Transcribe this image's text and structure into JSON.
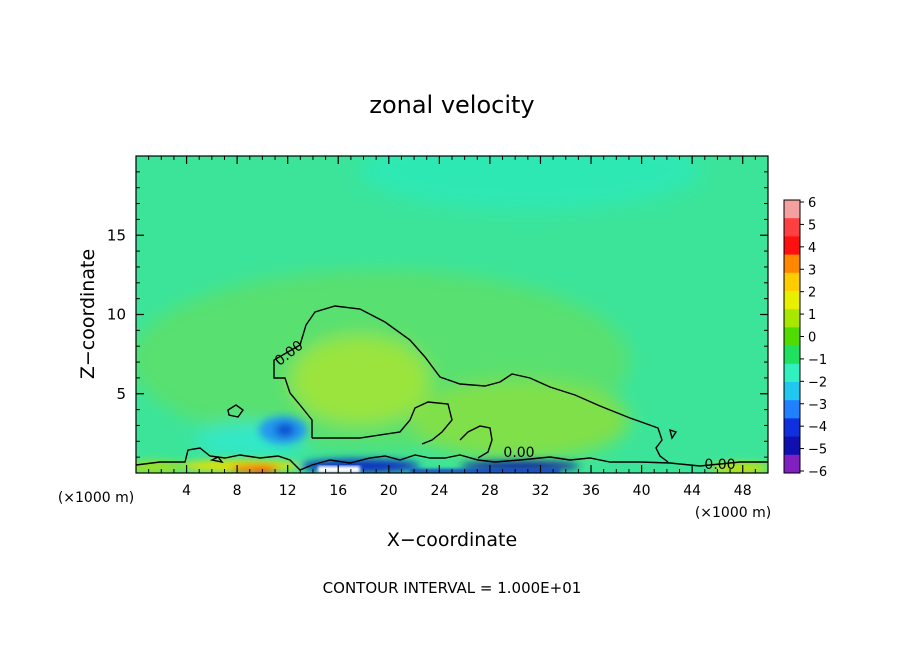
{
  "chart_data": {
    "type": "heatmap",
    "title": "zonal velocity",
    "xlabel": "X−coordinate",
    "ylabel": "Z−coordinate",
    "x_unit_left": "(×1000 m)",
    "x_unit_right": "(×1000 m)",
    "footer": "CONTOUR INTERVAL = 1.000E+01",
    "xlim": [
      0,
      50
    ],
    "ylim": [
      0,
      20
    ],
    "x_ticks": [
      4,
      8,
      12,
      16,
      20,
      24,
      28,
      32,
      36,
      40,
      44,
      48
    ],
    "y_ticks": [
      5,
      10,
      15
    ],
    "colorbar": {
      "levels": [
        6,
        5,
        4,
        3,
        2,
        1,
        0,
        -1,
        -2,
        -3,
        -4,
        -5,
        -6
      ],
      "labels": [
        "6",
        "5",
        "4",
        "3",
        "2",
        "1",
        "0",
        "−1",
        "−2",
        "−3",
        "−4",
        "−5",
        "−6"
      ],
      "colors": [
        "#f4a0a0",
        "#ff4040",
        "#ff1010",
        "#ff8800",
        "#ffcc00",
        "#e8f000",
        "#a8e800",
        "#50dc00",
        "#20e060",
        "#30f0c0",
        "#20c8f0",
        "#2080ff",
        "#1030e0",
        "#1010b0",
        "#8020c0"
      ]
    },
    "contour_labels": [
      "0.00",
      "0.00",
      "0.00"
    ],
    "contour_level": 0.0,
    "background_value": -0.6
  }
}
